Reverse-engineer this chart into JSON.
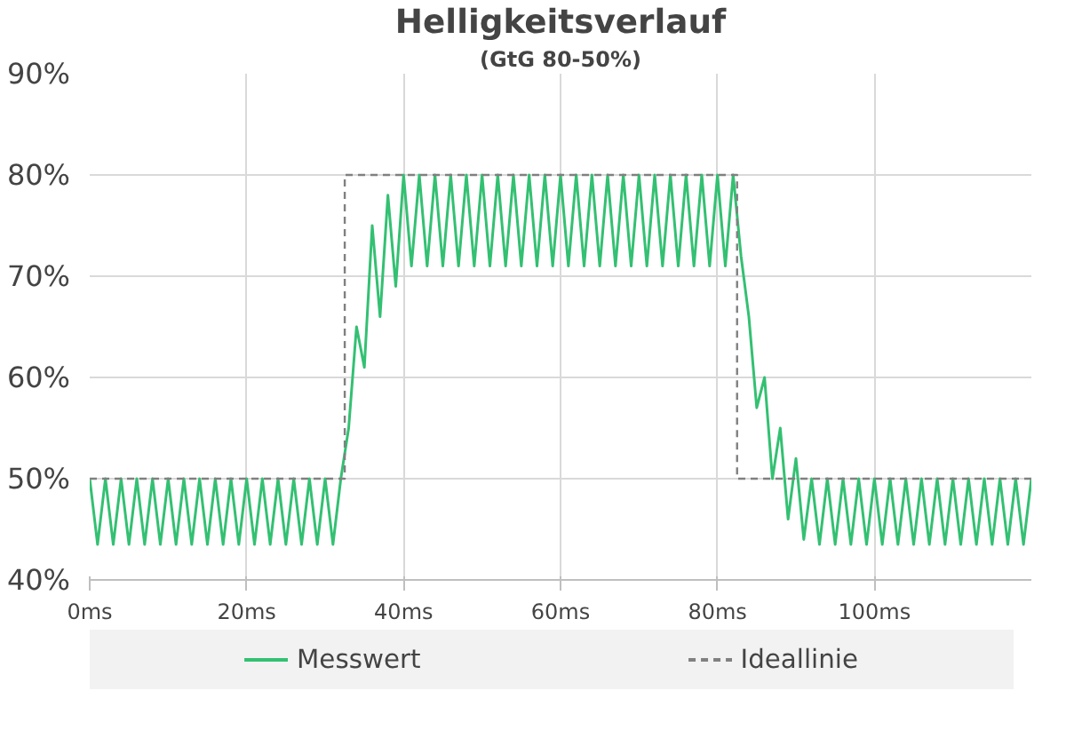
{
  "chart_data": {
    "type": "line",
    "title": "Helligkeitsverlauf",
    "subtitle": "(GtG 80-50%)",
    "xlim": [
      0,
      120
    ],
    "ylim": [
      40,
      90
    ],
    "xticks": [
      {
        "value": 0,
        "label": "0ms"
      },
      {
        "value": 20,
        "label": "20ms"
      },
      {
        "value": 40,
        "label": "40ms"
      },
      {
        "value": 60,
        "label": "60ms"
      },
      {
        "value": 80,
        "label": "80ms"
      },
      {
        "value": 100,
        "label": "100ms"
      }
    ],
    "yticks": [
      {
        "value": 40,
        "label": "40%"
      },
      {
        "value": 50,
        "label": "50%"
      },
      {
        "value": 60,
        "label": "60%"
      },
      {
        "value": 70,
        "label": "70%"
      },
      {
        "value": 80,
        "label": "80%"
      },
      {
        "value": 90,
        "label": "90%"
      }
    ],
    "grid": true,
    "legend": "bottom",
    "series": [
      {
        "name": "Messwert",
        "color": "#33c072",
        "line_style": "solid",
        "x": [
          0,
          1,
          2,
          3,
          4,
          5,
          6,
          7,
          8,
          9,
          10,
          11,
          12,
          13,
          14,
          15,
          16,
          17,
          18,
          19,
          20,
          21,
          22,
          23,
          24,
          25,
          26,
          27,
          28,
          29,
          30,
          31,
          32,
          33,
          34,
          35,
          36,
          37,
          38,
          39,
          40,
          41,
          42,
          43,
          44,
          45,
          46,
          47,
          48,
          49,
          50,
          51,
          52,
          53,
          54,
          55,
          56,
          57,
          58,
          59,
          60,
          61,
          62,
          63,
          64,
          65,
          66,
          67,
          68,
          69,
          70,
          71,
          72,
          73,
          74,
          75,
          76,
          77,
          78,
          79,
          80,
          81,
          82,
          83,
          84,
          85,
          86,
          87,
          88,
          89,
          90,
          91,
          92,
          93,
          94,
          95,
          96,
          97,
          98,
          99,
          100,
          101,
          102,
          103,
          104,
          105,
          106,
          107,
          108,
          109,
          110,
          111,
          112,
          113,
          114,
          115,
          116,
          117,
          118,
          119,
          120
        ],
        "values": [
          50,
          43.5,
          50,
          43.5,
          50,
          43.5,
          50,
          43.5,
          50,
          43.5,
          50,
          43.5,
          50,
          43.5,
          50,
          43.5,
          50,
          43.5,
          50,
          43.5,
          50,
          43.5,
          50,
          43.5,
          50,
          43.5,
          50,
          43.5,
          50,
          43.5,
          50,
          43.5,
          50,
          55,
          65,
          61,
          75,
          66,
          78,
          69,
          80,
          71,
          80,
          71,
          80,
          71,
          80,
          71,
          80,
          71,
          80,
          71,
          80,
          71,
          80,
          71,
          80,
          71,
          80,
          71,
          80,
          71,
          80,
          71,
          80,
          71,
          80,
          71,
          80,
          71,
          80,
          71,
          80,
          71,
          80,
          71,
          80,
          71,
          80,
          71,
          80,
          71,
          80,
          72,
          66,
          57,
          60,
          50,
          55,
          46,
          52,
          44,
          50,
          43.5,
          50,
          43.5,
          50,
          43.5,
          50,
          43.5,
          50,
          43.5,
          50,
          43.5,
          50,
          43.5,
          50,
          43.5,
          50,
          43.5,
          50,
          43.5,
          50,
          43.5,
          50,
          43.5,
          50,
          43.5,
          50,
          43.5,
          50
        ]
      },
      {
        "name": "Ideallinie",
        "color": "#808080",
        "line_style": "dashed",
        "x": [
          0,
          32.5,
          32.5,
          82.5,
          82.5,
          120
        ],
        "values": [
          50,
          50,
          80,
          80,
          50,
          50
        ]
      }
    ]
  }
}
